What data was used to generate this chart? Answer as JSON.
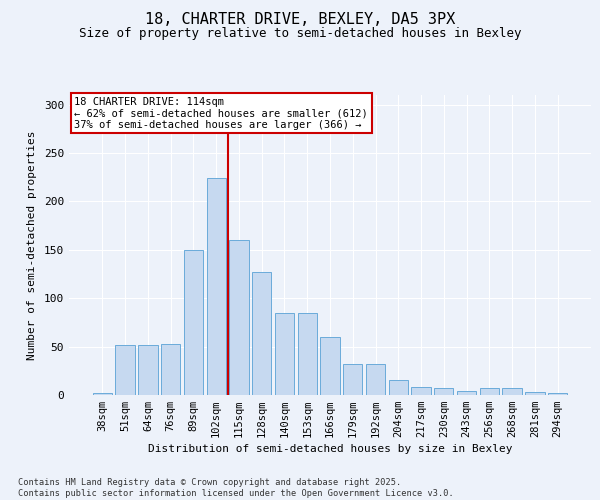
{
  "title1": "18, CHARTER DRIVE, BEXLEY, DA5 3PX",
  "title2": "Size of property relative to semi-detached houses in Bexley",
  "xlabel": "Distribution of semi-detached houses by size in Bexley",
  "ylabel": "Number of semi-detached properties",
  "categories": [
    "38sqm",
    "51sqm",
    "64sqm",
    "76sqm",
    "89sqm",
    "102sqm",
    "115sqm",
    "128sqm",
    "140sqm",
    "153sqm",
    "166sqm",
    "179sqm",
    "192sqm",
    "204sqm",
    "217sqm",
    "230sqm",
    "243sqm",
    "256sqm",
    "268sqm",
    "281sqm",
    "294sqm"
  ],
  "values": [
    2,
    52,
    52,
    53,
    150,
    224,
    160,
    127,
    85,
    85,
    60,
    32,
    32,
    15,
    8,
    7,
    4,
    7,
    7,
    3,
    2
  ],
  "bar_color": "#c6d9f0",
  "bar_edge_color": "#6aabda",
  "vline_x": 6,
  "vline_color": "#cc0000",
  "annotation_line1": "18 CHARTER DRIVE: 114sqm",
  "annotation_line2": "← 62% of semi-detached houses are smaller (612)",
  "annotation_line3": "37% of semi-detached houses are larger (366) →",
  "annotation_box_color": "#cc0000",
  "background_color": "#edf2fa",
  "footer_text": "Contains HM Land Registry data © Crown copyright and database right 2025.\nContains public sector information licensed under the Open Government Licence v3.0.",
  "ylim": [
    0,
    310
  ],
  "yticks": [
    0,
    50,
    100,
    150,
    200,
    250,
    300
  ],
  "grid_color": "#ffffff",
  "title1_fontsize": 11,
  "title2_fontsize": 9,
  "tick_fontsize": 7.5,
  "ytick_fontsize": 8,
  "xlabel_fontsize": 8,
  "ylabel_fontsize": 8
}
